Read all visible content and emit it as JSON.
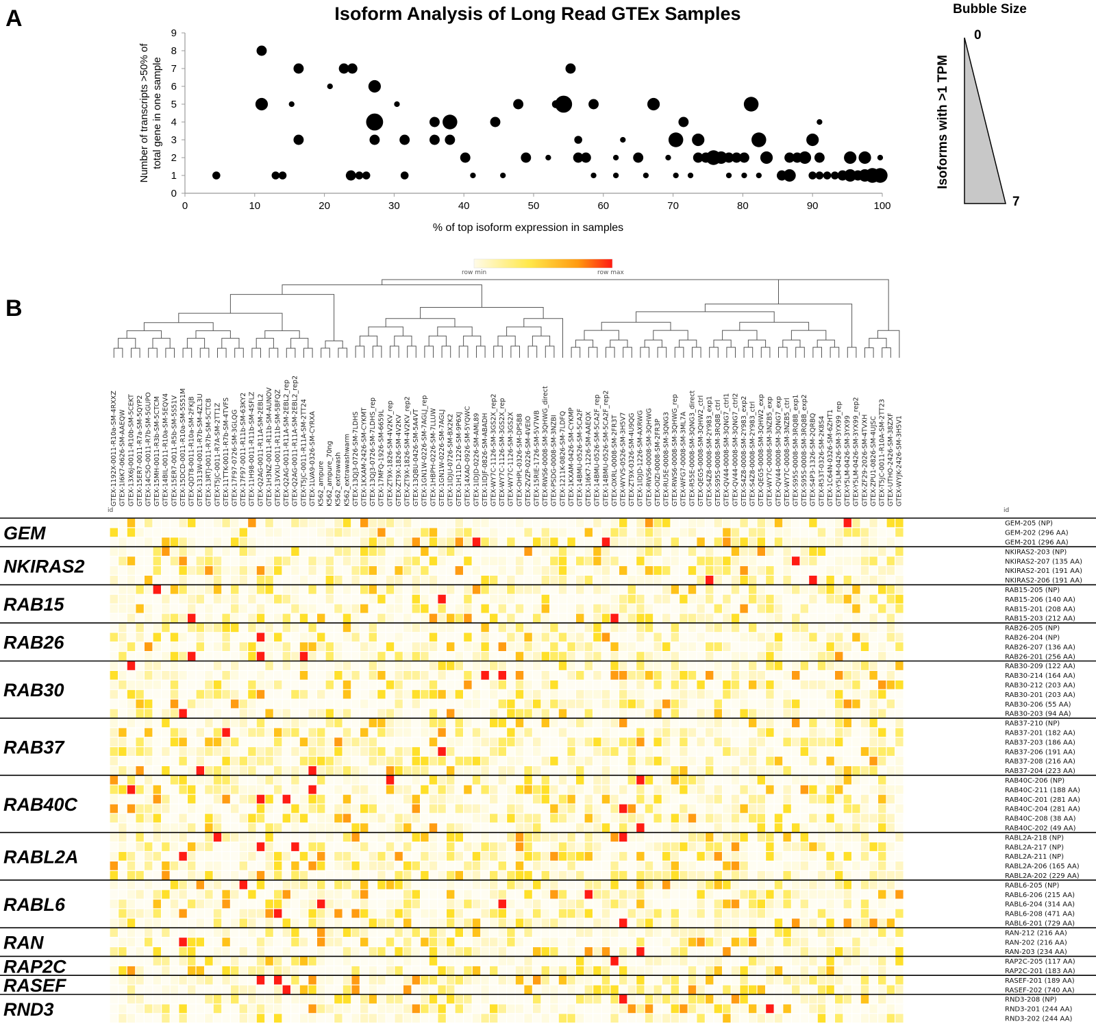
{
  "panel_a_label": "A",
  "panel_b_label": "B",
  "chart_data": [
    {
      "type": "scatter",
      "title": "Isoform Analysis of Long Read GTEx Samples",
      "xlabel": "% of top isoform expression in samples",
      "ylabel_line1": "Number of transcripts >50% of",
      "ylabel_line2": "total gene in one sample",
      "xlim": [
        0,
        100
      ],
      "ylim": [
        0,
        9
      ],
      "xticks": [
        "0",
        "10",
        "20",
        "30",
        "40",
        "50",
        "60",
        "70",
        "80",
        "90",
        "100"
      ],
      "yticks": [
        "0",
        "1",
        "2",
        "3",
        "4",
        "5",
        "6",
        "7",
        "8",
        "9"
      ],
      "size_legend": {
        "title": "Bubble Size",
        "label": "Isoforms with >1 TPM",
        "min": "0",
        "max": "7"
      },
      "points": [
        {
          "x": 4.5,
          "y": 1,
          "s": 2
        },
        {
          "x": 11,
          "y": 8,
          "s": 3
        },
        {
          "x": 11,
          "y": 5,
          "s": 4
        },
        {
          "x": 13,
          "y": 1,
          "s": 2
        },
        {
          "x": 14,
          "y": 1,
          "s": 2
        },
        {
          "x": 15.3,
          "y": 5,
          "s": 1
        },
        {
          "x": 16.3,
          "y": 7,
          "s": 3
        },
        {
          "x": 16.3,
          "y": 3,
          "s": 3
        },
        {
          "x": 20.8,
          "y": 6,
          "s": 1
        },
        {
          "x": 22.8,
          "y": 7,
          "s": 3
        },
        {
          "x": 24,
          "y": 7,
          "s": 3
        },
        {
          "x": 23.8,
          "y": 1,
          "s": 3
        },
        {
          "x": 25,
          "y": 1,
          "s": 2
        },
        {
          "x": 26,
          "y": 1,
          "s": 2
        },
        {
          "x": 27.2,
          "y": 6,
          "s": 4
        },
        {
          "x": 27.2,
          "y": 4,
          "s": 6
        },
        {
          "x": 27.2,
          "y": 3,
          "s": 3
        },
        {
          "x": 30.4,
          "y": 5,
          "s": 1
        },
        {
          "x": 31.5,
          "y": 3,
          "s": 3
        },
        {
          "x": 31.5,
          "y": 1,
          "s": 2
        },
        {
          "x": 35.8,
          "y": 4,
          "s": 3
        },
        {
          "x": 35.8,
          "y": 3,
          "s": 3
        },
        {
          "x": 38,
          "y": 4,
          "s": 5
        },
        {
          "x": 38,
          "y": 3,
          "s": 3
        },
        {
          "x": 40.2,
          "y": 2,
          "s": 3
        },
        {
          "x": 41.3,
          "y": 1,
          "s": 1
        },
        {
          "x": 44.5,
          "y": 4,
          "s": 3
        },
        {
          "x": 45.6,
          "y": 1,
          "s": 1
        },
        {
          "x": 47.8,
          "y": 5,
          "s": 3
        },
        {
          "x": 48.9,
          "y": 2,
          "s": 3
        },
        {
          "x": 52.1,
          "y": 2,
          "s": 1
        },
        {
          "x": 53.2,
          "y": 5,
          "s": 2
        },
        {
          "x": 54.3,
          "y": 5,
          "s": 6
        },
        {
          "x": 55.3,
          "y": 7,
          "s": 3
        },
        {
          "x": 56.4,
          "y": 3,
          "s": 2
        },
        {
          "x": 56.4,
          "y": 2,
          "s": 3
        },
        {
          "x": 57.5,
          "y": 2,
          "s": 3
        },
        {
          "x": 58.6,
          "y": 5,
          "s": 3
        },
        {
          "x": 58.6,
          "y": 1,
          "s": 1
        },
        {
          "x": 61.8,
          "y": 2,
          "s": 1
        },
        {
          "x": 61.8,
          "y": 1,
          "s": 1
        },
        {
          "x": 62.8,
          "y": 3,
          "s": 1
        },
        {
          "x": 65,
          "y": 2,
          "s": 3
        },
        {
          "x": 66.1,
          "y": 1,
          "s": 1
        },
        {
          "x": 67.2,
          "y": 5,
          "s": 4
        },
        {
          "x": 69.3,
          "y": 2,
          "s": 1
        },
        {
          "x": 70.4,
          "y": 3,
          "s": 5
        },
        {
          "x": 71.5,
          "y": 4,
          "s": 3
        },
        {
          "x": 70.4,
          "y": 1,
          "s": 1
        },
        {
          "x": 72.5,
          "y": 1,
          "s": 1
        },
        {
          "x": 73.6,
          "y": 3,
          "s": 4
        },
        {
          "x": 73.6,
          "y": 2,
          "s": 3
        },
        {
          "x": 74.7,
          "y": 2,
          "s": 3
        },
        {
          "x": 75.8,
          "y": 2,
          "s": 5
        },
        {
          "x": 76.9,
          "y": 2,
          "s": 4
        },
        {
          "x": 78,
          "y": 2,
          "s": 3
        },
        {
          "x": 78,
          "y": 1,
          "s": 1
        },
        {
          "x": 79.1,
          "y": 2,
          "s": 3
        },
        {
          "x": 80.2,
          "y": 2,
          "s": 3
        },
        {
          "x": 81.2,
          "y": 5,
          "s": 5
        },
        {
          "x": 80.2,
          "y": 1,
          "s": 1
        },
        {
          "x": 82.3,
          "y": 3,
          "s": 5
        },
        {
          "x": 82.3,
          "y": 1,
          "s": 1
        },
        {
          "x": 83.4,
          "y": 2,
          "s": 4
        },
        {
          "x": 85.6,
          "y": 1,
          "s": 3
        },
        {
          "x": 86.7,
          "y": 1,
          "s": 4
        },
        {
          "x": 86.7,
          "y": 2,
          "s": 3
        },
        {
          "x": 87.8,
          "y": 2,
          "s": 3
        },
        {
          "x": 88.9,
          "y": 2,
          "s": 4
        },
        {
          "x": 90,
          "y": 3,
          "s": 4
        },
        {
          "x": 91,
          "y": 4,
          "s": 1
        },
        {
          "x": 91,
          "y": 2,
          "s": 3
        },
        {
          "x": 90,
          "y": 1,
          "s": 2
        },
        {
          "x": 91,
          "y": 1,
          "s": 2
        },
        {
          "x": 92.1,
          "y": 1,
          "s": 2
        },
        {
          "x": 93.2,
          "y": 1,
          "s": 2
        },
        {
          "x": 94.3,
          "y": 1,
          "s": 3
        },
        {
          "x": 95.4,
          "y": 2,
          "s": 4
        },
        {
          "x": 95.4,
          "y": 1,
          "s": 4
        },
        {
          "x": 96.5,
          "y": 1,
          "s": 3
        },
        {
          "x": 97.5,
          "y": 2,
          "s": 4
        },
        {
          "x": 97.5,
          "y": 1,
          "s": 4
        },
        {
          "x": 98.6,
          "y": 1,
          "s": 5
        },
        {
          "x": 99.7,
          "y": 1,
          "s": 5
        },
        {
          "x": 99.7,
          "y": 2,
          "s": 1
        }
      ]
    },
    {
      "type": "heatmap",
      "color_legend": {
        "min": "row min",
        "max": "row max"
      },
      "id_label": "id",
      "samples": [
        "GTEX-1192X-0011-R10a-SM-4RXXZ",
        "GTEX-1I6K7-0626-SM-AAEQW",
        "GTEX-13X6J-0011-R10b-SM-5CEKT",
        "GTEX-15ER7-0011-R7a-SM-5QYP2",
        "GTEX-14C5O-0011-R7b-SM-5GUPO",
        "GTEX-15MH-0011-R3b-SM-5CTCM",
        "GTEX-14BIL-0011-R10a-SM-5EQV4",
        "GTEX-15ER7-0011-R5b-SM-5S51V",
        "GTEX-15DCD-0011-R10a-SM-5S51M",
        "GTEX-QDT8-0011-R10a-SM-2FKJB",
        "GTEX-1313W-0011-R7b-SM-4ZL3U",
        "GTEX-13RTJ-0011-R7b-SM-5CTCB",
        "GTEX-T5JC-0011-R7A-SM-2TT1Z",
        "GTEX-11TTK-0011-R7b-SM-4TVFS",
        "GTEX-17F97-0726-SM-3GLQG",
        "GTEX-17F97-0011-R11b-SM-63KY2",
        "GTEX-11H98-0011-R11b-SM-4SFLZ",
        "GTEX-Q2AG-0011-R11A-SM-2EBL2",
        "GTEX-1H3NZ-0011-R11b-SM-AUNOV",
        "GTEX-13VXU-0011-R11b-SM-5BFQZ",
        "GTEX-Q2AG-0011-R11A-SM-2EBL2_rep",
        "GTEX-Q2AG-0011-R11A-SM-2EBL2_rep2",
        "GTEX-T5JC-0011-R11A-SM-2TT24",
        "GTEX-1LVA9-0326-SM-CYRXA",
        "K562_ampure",
        "K562_ampure_70ng",
        "K562_extrawash",
        "K562_extrawashwarm",
        "GTEX-13QJ3-0726-SM-7LDHS",
        "GTEX-1KXAM-2426-SM-CYKMT",
        "GTEX-13QJ3-0726-SM-7LDHS_rep",
        "GTEX-17MFQ-1926-SM-6659L",
        "GTEX-ZT9X-1826-SM-4V2KV_rep",
        "GTEX-ZT9X-1826-SM-4V2KV",
        "GTEX-ZT9X-1826-SM-4V2KV_rep2",
        "GTEX-13QBU-0426-SM-5A4VT",
        "GTEX-1GN1W-0226-SM-7AGLJ_rep",
        "GTEX-1HBPH-0226-SM-7LLUW",
        "GTEX-1GN1W-0226-SM-7AGLJ",
        "GTEX-1IDJU-0726-SM-BX2K2",
        "GTEX-1H11D-1226-SM-9P6XJ",
        "GTEX-14XAO-0926-SM-5YQWC",
        "GTEX-1IDJD-0226-SM-AML89",
        "GTEX-1IDJF-0826-SM-ABADH",
        "GTEX-WY7C-1126-SM-3GS2X_rep2",
        "GTEX-WY7C-1126-SM-3GS2X_rep",
        "GTEX-WY7C-1126-SM-3GS2X",
        "GTEX-OHPL-0326-SM-DPSB8",
        "GTEX-ZVZP-0226-SM-4VEIO",
        "GTEX-15RIE-1726-SM-5V7WB",
        "GTEX-RWS6-0008-SM-3QHWG_direct",
        "GTEX-PSDG-0008-SM-3NZBI",
        "GTEX-1211K-0826-SM-7LDFQ",
        "GTEX-1KXAM-0426-SM-CYKMP",
        "GTEX-14BMU-0526-SM-5CA2F",
        "GTEX-1I6K7-1226-SM-AAEQX",
        "GTEX-14BMU-0526-SM-5CA2F_rep",
        "GTEX-14BMU-0526-SM-5CA2F_rep2",
        "GTEX-OXRL-0008-SM-2FR3T",
        "GTEX-WYVS-0526-SM-3H5V7",
        "GTEX-ZT9X-0326-SM-4U9QG",
        "GTEX-1IDJD-1226-SM-AXRWG",
        "GTEX-RWS6-0008-SM-3QHWG",
        "GTEX-OIZI-0008-SM-2FR3P",
        "GTEX-RU5E-0008-SM-3QNG3",
        "GTEX-RWS6-0008-SM-3QHWG_rep",
        "GTEX-WFG7-0008-SM-3ML7A",
        "GTEX-R55E-0008-SM-3QNG3_direct",
        "GTEX-QEG5-0008-SM-3QHW2_ctrl",
        "GTEX-S4Z8-0008-SM-2Y983_exp1",
        "GTEX-S95S-0008-SM-3RQ8B_ctrl",
        "GTEX-QV44-0008-SM-3QNG7_ctrl1",
        "GTEX-QV44-0008-SM-3QNG7_ctrl2",
        "GTEX-S4Z8-0008-SM-2Y983_exp2",
        "GTEX-S4Z8-0008-SM-2Y983_ctrl",
        "GTEX-QEG5-0008-SM-3QHW2_exp",
        "GTEX-WY7C-0008-SM-3NZB5_exp",
        "GTEX-QV44-0008-SM-3QNG7_exp",
        "GTEX-WY7C-0008-SM-3NZB5_ctrl",
        "GTEX-S95S-0008-SM-3RQ8B_exp1",
        "GTEX-S95S-0008-SM-3RQ8B_exp2",
        "GTEX-S4P3-1326-SM-2QRBQ",
        "GTEX-R53T-0326-SM-2K8S4",
        "GTEX-1C64N-0326-SM-6ZHT1",
        "GTEX-Y5LM-0426-SM-3YX99_rep",
        "GTEX-Y5LM-0426-SM-3YX99",
        "GTEX-Y5LM-0426-SM-3YX99_rep2",
        "GTEX-ZF29-2026-SM-4TVXH",
        "GTEX-ZPU1-0826-SM-4UJSC",
        "GTEX-T5JC-0011-R10A-SM-2TT23",
        "GTEX-UTHO-2426-SM-38ZXF",
        "GTEX-WYJK-2426-SM-3H5V1"
      ],
      "genes": [
        {
          "name": "GEM",
          "isoforms": [
            "GEM-205 (NP)",
            "GEM-202 (296 AA)",
            "GEM-201 (296 AA)"
          ]
        },
        {
          "name": "NKIRAS2",
          "isoforms": [
            "NKIRAS2-203 (NP)",
            "NKIRAS2-207 (135 AA)",
            "NKIRAS2-201 (191 AA)",
            "NKIRAS2-206 (191 AA)"
          ]
        },
        {
          "name": "RAB15",
          "isoforms": [
            "RAB15-205 (NP)",
            "RAB15-206 (140 AA)",
            "RAB15-201 (208 AA)",
            "RAB15-203 (212 AA)"
          ]
        },
        {
          "name": "RAB26",
          "isoforms": [
            "RAB26-205 (NP)",
            "RAB26-204 (NP)",
            "RAB26-207 (136 AA)",
            "RAB26-201 (256 AA)"
          ]
        },
        {
          "name": "RAB30",
          "isoforms": [
            "RAB30-209 (122 AA)",
            "RAB30-214 (164 AA)",
            "RAB30-212 (203 AA)",
            "RAB30-201 (203 AA)",
            "RAB30-206 (55 AA)",
            "RAB30-203 (94 AA)"
          ]
        },
        {
          "name": "RAB37",
          "isoforms": [
            "RAB37-210 (NP)",
            "RAB37-201 (182 AA)",
            "RAB37-203 (186 AA)",
            "RAB37-206 (191 AA)",
            "RAB37-208 (216 AA)",
            "RAB37-204 (223 AA)"
          ]
        },
        {
          "name": "RAB40C",
          "isoforms": [
            "RAB40C-206 (NP)",
            "RAB40C-211 (188 AA)",
            "RAB40C-201 (281 AA)",
            "RAB40C-204 (281 AA)",
            "RAB40C-208 (38 AA)",
            "RAB40C-202 (49 AA)"
          ]
        },
        {
          "name": "RABL2A",
          "isoforms": [
            "RABL2A-218 (NP)",
            "RABL2A-217 (NP)",
            "RABL2A-211 (NP)",
            "RABL2A-206 (165 AA)",
            "RABL2A-202 (229 AA)"
          ]
        },
        {
          "name": "RABL6",
          "isoforms": [
            "RABL6-205 (NP)",
            "RABL6-206 (215 AA)",
            "RABL6-204 (314 AA)",
            "RABL6-208 (471 AA)",
            "RABL6-201 (729 AA)"
          ]
        },
        {
          "name": "RAN",
          "isoforms": [
            "RAN-212 (216 AA)",
            "RAN-202 (216 AA)",
            "RAN-203 (234 AA)"
          ]
        },
        {
          "name": "RAP2C",
          "isoforms": [
            "RAP2C-205 (117 AA)",
            "RAP2C-201 (183 AA)"
          ]
        },
        {
          "name": "RASEF",
          "isoforms": [
            "RASEF-201 (189 AA)",
            "RASEF-202 (740 AA)"
          ]
        },
        {
          "name": "RND3",
          "isoforms": [
            "RND3-208 (NP)",
            "RND3-201 (244 AA)",
            "RND3-202 (244 AA)"
          ]
        }
      ],
      "red_cells": [
        [
          0,
          85
        ],
        [
          2,
          42
        ],
        [
          2,
          57
        ],
        [
          2,
          103
        ],
        [
          4,
          79
        ],
        [
          6,
          69
        ],
        [
          6,
          81
        ],
        [
          7,
          5
        ],
        [
          8,
          38
        ],
        [
          10,
          9
        ],
        [
          10,
          58
        ],
        [
          12,
          17
        ],
        [
          14,
          9
        ],
        [
          14,
          17
        ],
        [
          14,
          22
        ],
        [
          15,
          2
        ],
        [
          16,
          43
        ],
        [
          16,
          45
        ],
        [
          20,
          8
        ],
        [
          22,
          13
        ],
        [
          24,
          38
        ],
        [
          26,
          10
        ],
        [
          26,
          23
        ],
        [
          27,
          32
        ],
        [
          27,
          61
        ],
        [
          28,
          2
        ],
        [
          28,
          23
        ],
        [
          29,
          17
        ],
        [
          29,
          20
        ],
        [
          30,
          59
        ],
        [
          31,
          93
        ],
        [
          32,
          61
        ],
        [
          33,
          12
        ],
        [
          33,
          59
        ],
        [
          34,
          17
        ],
        [
          34,
          21
        ],
        [
          35,
          8
        ],
        [
          38,
          15
        ],
        [
          39,
          55
        ],
        [
          40,
          24
        ],
        [
          40,
          45
        ],
        [
          41,
          19
        ],
        [
          42,
          59
        ],
        [
          44,
          8
        ],
        [
          45,
          61
        ],
        [
          46,
          58
        ],
        [
          48,
          17
        ],
        [
          48,
          19
        ],
        [
          49,
          20
        ],
        [
          50,
          59
        ],
        [
          51,
          76
        ],
        [
          52,
          102
        ],
        [
          53,
          104
        ],
        [
          54,
          33
        ],
        [
          55,
          59
        ],
        [
          56,
          76
        ]
      ]
    }
  ]
}
